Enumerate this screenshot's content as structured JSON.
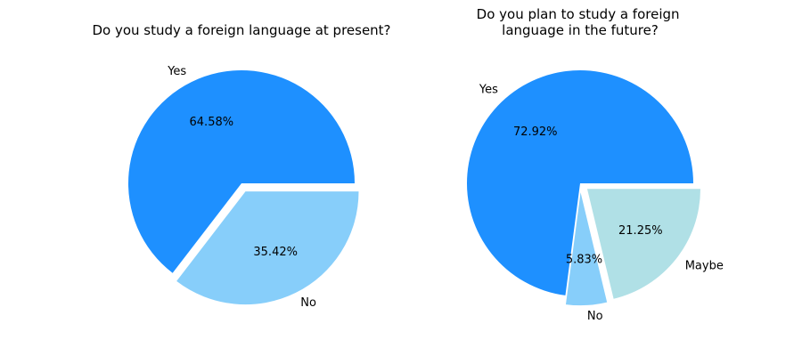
{
  "chart_data": [
    {
      "type": "pie",
      "title": "Do you study a foreign language at present?",
      "labels": [
        "Yes",
        "No"
      ],
      "values": [
        64.58,
        35.42
      ],
      "value_labels": [
        "64.58%",
        "35.42%"
      ],
      "colors": [
        "#1e90ff",
        "#87cefa"
      ],
      "exploded": [
        false,
        true
      ]
    },
    {
      "type": "pie",
      "title": "Do you plan to study a foreign language in the future?",
      "title_lines": [
        "Do you plan to study a foreign",
        "language in the future?"
      ],
      "labels": [
        "Yes",
        "No",
        "Maybe"
      ],
      "values": [
        72.92,
        5.83,
        21.25
      ],
      "value_labels": [
        "72.92%",
        "5.83%",
        "21.25%"
      ],
      "colors": [
        "#1e90ff",
        "#87cefa",
        "#b0e0e6"
      ],
      "exploded": [
        false,
        true,
        true
      ]
    }
  ]
}
